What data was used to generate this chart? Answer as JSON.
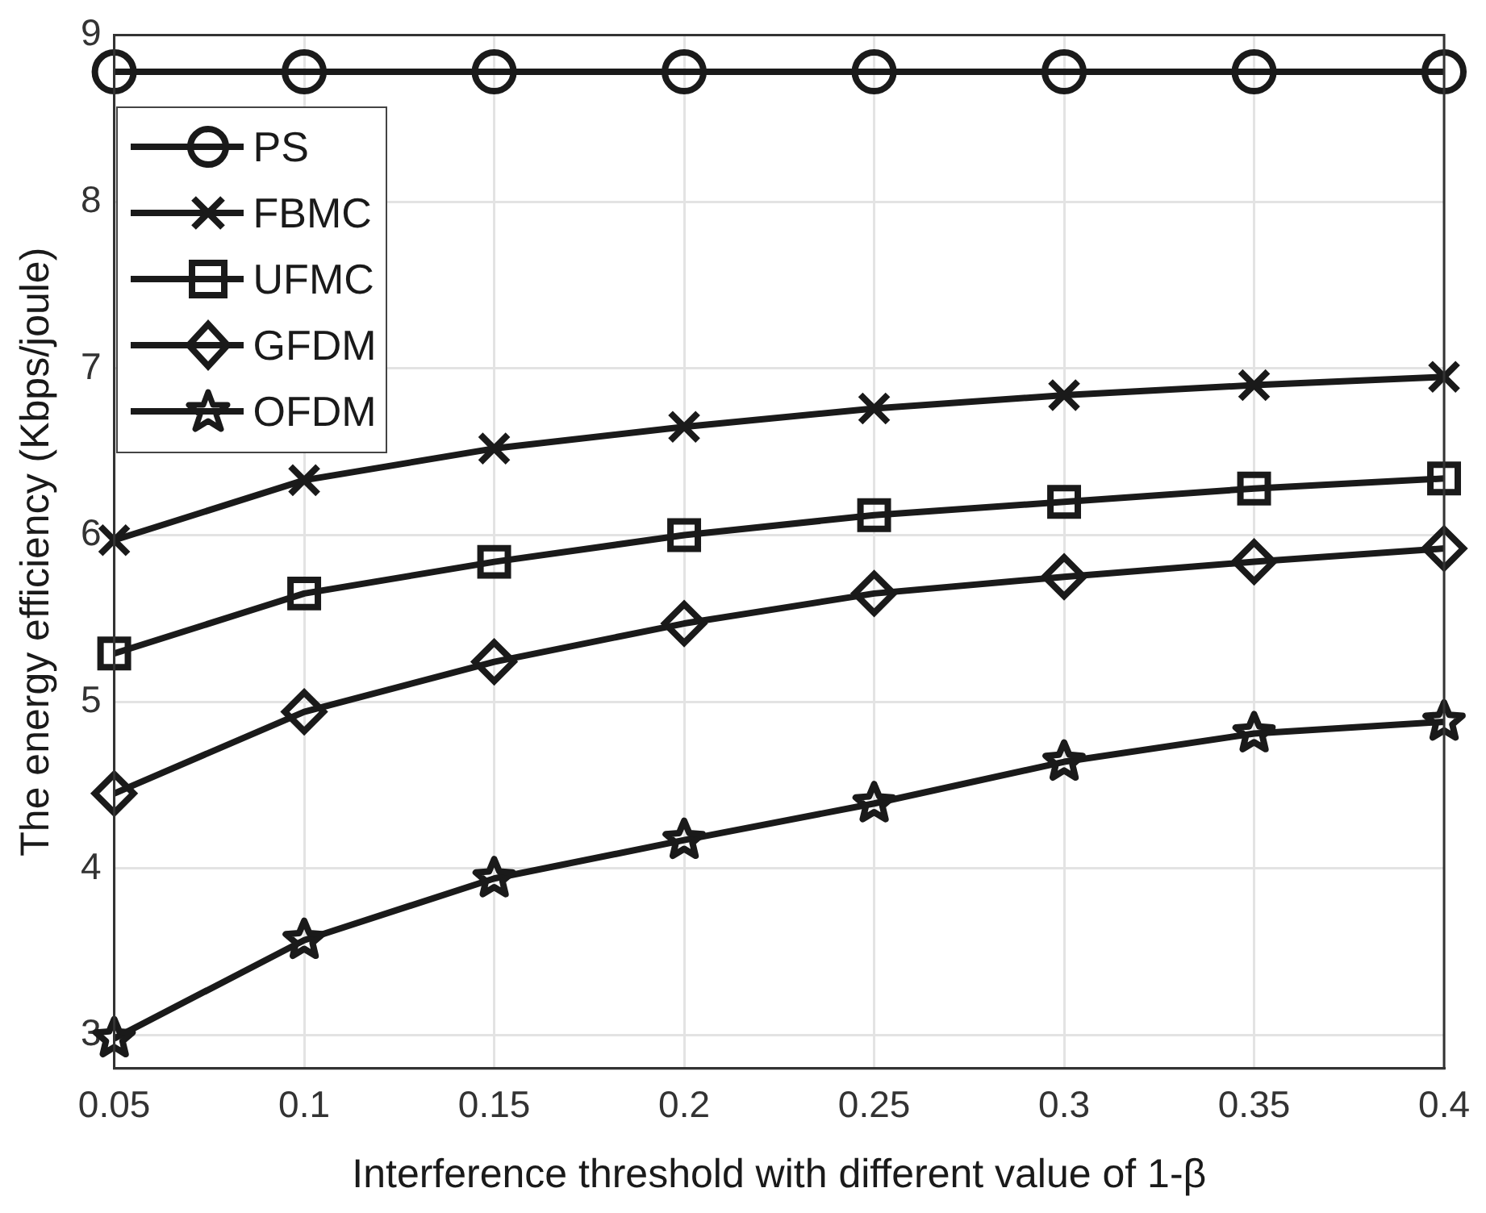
{
  "chart_data": {
    "type": "line",
    "xlabel": "Interference threshold with different value of 1-β",
    "ylabel": "The energy efficiency (Kbps/joule)",
    "x": [
      0.05,
      0.1,
      0.15,
      0.2,
      0.25,
      0.3,
      0.35,
      0.4
    ],
    "xlim": [
      0.05,
      0.4
    ],
    "xticks": [
      0.05,
      0.1,
      0.15,
      0.2,
      0.25,
      0.3,
      0.35,
      0.4
    ],
    "ylim": [
      2.8,
      9
    ],
    "yticks": [
      3,
      4,
      5,
      6,
      7,
      8,
      9
    ],
    "grid": true,
    "legend": "top left",
    "line_style": "solid",
    "series": [
      {
        "name": "PS",
        "color": "#1a1a1a",
        "marker": "circle",
        "values": [
          8.78,
          8.78,
          8.78,
          8.78,
          8.78,
          8.78,
          8.78,
          8.78
        ]
      },
      {
        "name": "FBMC",
        "color": "#1a1a1a",
        "marker": "cross",
        "values": [
          5.97,
          6.33,
          6.52,
          6.65,
          6.76,
          6.84,
          6.9,
          6.95
        ]
      },
      {
        "name": "UFMC",
        "color": "#1a1a1a",
        "marker": "square",
        "values": [
          5.29,
          5.65,
          5.84,
          6.0,
          6.12,
          6.2,
          6.28,
          6.34
        ]
      },
      {
        "name": "GFDM",
        "color": "#1a1a1a",
        "marker": "diamond",
        "values": [
          4.45,
          4.94,
          5.24,
          5.47,
          5.65,
          5.75,
          5.84,
          5.92
        ]
      },
      {
        "name": "OFDM",
        "color": "#1a1a1a",
        "marker": "star",
        "values": [
          2.98,
          3.57,
          3.94,
          4.17,
          4.39,
          4.64,
          4.81,
          4.88
        ]
      }
    ]
  }
}
